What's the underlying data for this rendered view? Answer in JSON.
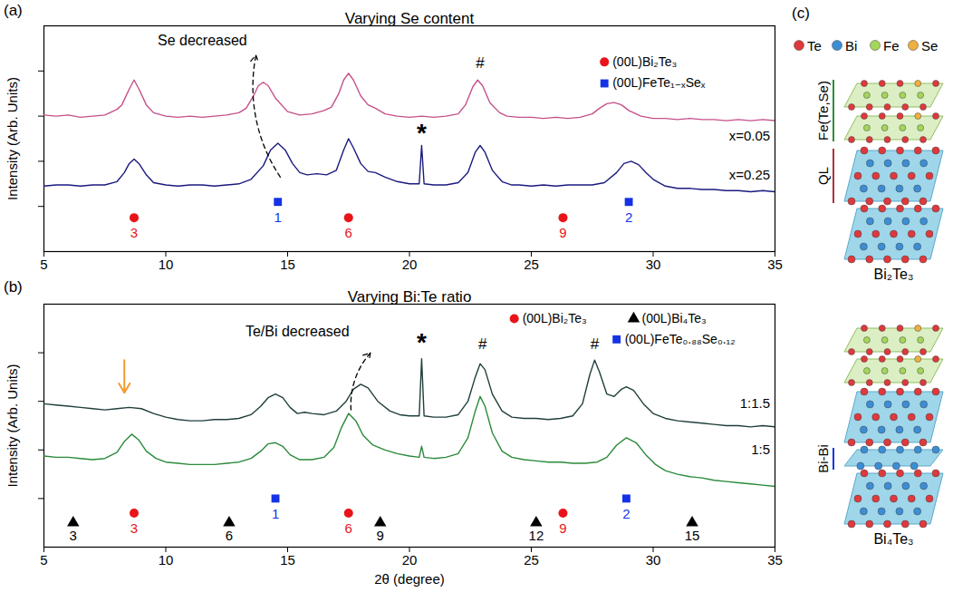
{
  "chart_data": [
    {
      "type": "line",
      "panel_label": "(a)",
      "title": "Varying Se content",
      "ylabel": "Intensity (Arb. Units)",
      "xlim": [
        5,
        35
      ],
      "xticks": [
        5,
        10,
        15,
        20,
        25,
        30,
        35
      ],
      "ylim": [
        0,
        10
      ],
      "yticks": [
        2,
        4,
        6,
        8
      ],
      "tick_labels": "x",
      "grid": false,
      "legend": "top-right",
      "series": [
        {
          "name": "x=0.05",
          "color": "#c5508a",
          "x": [
            5,
            5.5,
            6,
            6.5,
            7,
            7.5,
            8,
            8.2,
            8.5,
            8.7,
            8.9,
            9.2,
            9.5,
            10,
            10.5,
            11,
            11.5,
            12,
            12.5,
            13,
            13.3,
            13.6,
            13.8,
            14.0,
            14.2,
            14.5,
            15,
            15.5,
            16,
            16.5,
            16.8,
            17.1,
            17.3,
            17.5,
            17.7,
            18,
            18.3,
            18.6,
            19,
            19.5,
            20,
            20.5,
            21,
            21.5,
            22,
            22.3,
            22.6,
            22.8,
            23.0,
            23.3,
            23.7,
            24,
            24.5,
            25,
            25.5,
            26,
            26.5,
            27,
            27.5,
            27.8,
            28.1,
            28.4,
            28.7,
            29,
            29.5,
            30,
            30.5,
            31,
            31.5,
            32,
            32.5,
            33,
            33.5,
            34,
            34.5,
            35
          ],
          "values": [
            6.05,
            6.0,
            6.05,
            5.95,
            6.0,
            6.05,
            6.3,
            6.5,
            7.2,
            7.6,
            7.2,
            6.5,
            6.15,
            6.0,
            5.95,
            6.0,
            5.95,
            6.0,
            6.05,
            6.15,
            6.35,
            6.9,
            7.35,
            7.5,
            7.35,
            6.8,
            6.2,
            6.05,
            6.1,
            6.25,
            6.4,
            7.0,
            7.6,
            7.9,
            7.6,
            6.9,
            6.5,
            6.35,
            6.1,
            6.0,
            5.95,
            6.0,
            5.95,
            6.0,
            6.1,
            6.5,
            7.3,
            7.6,
            7.35,
            6.6,
            6.15,
            6.0,
            5.95,
            5.95,
            5.9,
            5.95,
            5.9,
            5.95,
            6.1,
            6.35,
            6.55,
            6.6,
            6.5,
            6.25,
            6.0,
            5.9,
            5.9,
            5.85,
            5.9,
            5.85,
            5.85,
            5.8,
            5.85,
            5.8,
            5.85,
            5.8
          ]
        },
        {
          "name": "x=0.25",
          "color": "#1a1a80",
          "x": [
            5,
            5.5,
            6,
            6.5,
            7,
            7.5,
            8,
            8.3,
            8.5,
            8.7,
            8.9,
            9.2,
            9.5,
            10,
            10.5,
            11,
            11.5,
            12,
            12.5,
            13,
            13.5,
            14,
            14.3,
            14.6,
            14.9,
            15.2,
            15.5,
            15.8,
            16.2,
            16.6,
            17,
            17.3,
            17.5,
            17.7,
            18,
            18.3,
            18.6,
            19,
            19.5,
            20,
            20.4,
            20.5,
            20.6,
            21,
            21.5,
            22,
            22.4,
            22.7,
            22.9,
            23.1,
            23.4,
            23.8,
            24.2,
            24.5,
            25,
            25.5,
            26,
            26.5,
            27,
            27.5,
            28,
            28.5,
            28.8,
            29.1,
            29.4,
            29.7,
            30,
            30.5,
            31,
            31.5,
            32,
            32.5,
            33,
            33.5,
            34,
            34.5,
            35
          ],
          "values": [
            2.9,
            2.95,
            2.95,
            2.9,
            2.95,
            2.95,
            3.1,
            3.5,
            3.9,
            4.1,
            3.9,
            3.4,
            3.05,
            2.95,
            2.9,
            2.95,
            2.95,
            2.9,
            2.95,
            3.0,
            3.2,
            3.8,
            4.5,
            4.8,
            4.5,
            3.9,
            3.5,
            3.4,
            3.45,
            3.4,
            3.6,
            4.5,
            5.0,
            4.6,
            3.9,
            3.55,
            3.5,
            3.3,
            3.1,
            3.0,
            3.0,
            4.7,
            3.0,
            2.95,
            2.95,
            3.05,
            3.5,
            4.4,
            4.7,
            4.4,
            3.6,
            3.1,
            2.95,
            2.95,
            2.9,
            2.95,
            2.9,
            2.95,
            2.95,
            2.95,
            3.05,
            3.5,
            3.9,
            4.0,
            3.85,
            3.5,
            3.2,
            2.9,
            2.8,
            2.8,
            2.75,
            2.75,
            2.7,
            2.7,
            2.65,
            2.7,
            2.65
          ]
        }
      ],
      "reference_peaks": [
        {
          "name": "(00L)Bi₂Te₃",
          "color": "#e8141a",
          "marker": "circle",
          "x": [
            8.7,
            17.5,
            26.3
          ],
          "labels": [
            "3",
            "6",
            "9"
          ]
        },
        {
          "name": "(00L)FeTe₁₋ₓSeₓ",
          "color": "#1432e6",
          "marker": "square",
          "x": [
            14.6,
            29.0
          ],
          "labels": [
            "1",
            "2"
          ]
        }
      ],
      "annotations": [
        {
          "text": "Se decreased",
          "line_style": "dashed"
        },
        {
          "text": "*",
          "x": 20.5
        },
        {
          "text": "#",
          "x": 22.9
        }
      ]
    },
    {
      "type": "line",
      "panel_label": "(b)",
      "title": "Varying Bi:Te ratio",
      "xlabel": "2θ (degree)",
      "ylabel": "Intensity (Arb. Units)",
      "xlim": [
        5,
        35
      ],
      "xticks": [
        5,
        10,
        15,
        20,
        25,
        30,
        35
      ],
      "ylim": [
        0,
        10
      ],
      "yticks": [
        2,
        4,
        6,
        8
      ],
      "tick_labels": "x",
      "grid": false,
      "legend": "top-right",
      "series": [
        {
          "name": "1:1.5",
          "color": "#1f3f3c",
          "x": [
            5,
            5.5,
            6,
            6.5,
            7,
            7.5,
            8,
            8.5,
            9,
            9.5,
            10,
            10.5,
            11,
            11.5,
            12,
            12.5,
            13,
            13.5,
            13.9,
            14.2,
            14.5,
            14.8,
            15.1,
            15.4,
            15.7,
            16,
            16.5,
            17,
            17.4,
            17.7,
            18,
            18.3,
            18.7,
            19.2,
            19.6,
            20,
            20.4,
            20.5,
            20.6,
            21,
            21.5,
            22,
            22.4,
            22.7,
            22.9,
            23.1,
            23.4,
            23.8,
            24.2,
            24.7,
            25.2,
            25.7,
            26.2,
            26.7,
            27.1,
            27.4,
            27.6,
            27.8,
            28.1,
            28.4,
            28.7,
            28.9,
            29.2,
            29.6,
            30,
            30.5,
            31,
            31.5,
            32,
            32.5,
            33,
            33.5,
            34,
            34.5,
            35
          ],
          "values": [
            5.9,
            5.85,
            5.8,
            5.75,
            5.7,
            5.65,
            5.7,
            5.75,
            5.7,
            5.5,
            5.35,
            5.25,
            5.2,
            5.2,
            5.25,
            5.25,
            5.3,
            5.45,
            5.8,
            6.15,
            6.3,
            6.15,
            5.75,
            5.5,
            5.55,
            5.5,
            5.45,
            5.6,
            6.0,
            6.5,
            6.7,
            6.55,
            6.0,
            5.6,
            5.45,
            5.4,
            5.4,
            7.75,
            5.4,
            5.35,
            5.35,
            5.45,
            6.0,
            7.0,
            7.55,
            7.3,
            6.3,
            5.6,
            5.35,
            5.3,
            5.3,
            5.25,
            5.3,
            5.4,
            5.9,
            7.1,
            7.7,
            7.2,
            6.3,
            6.2,
            6.5,
            6.6,
            6.45,
            5.9,
            5.5,
            5.3,
            5.2,
            5.15,
            5.1,
            5.05,
            5.0,
            5.0,
            4.95,
            5.0,
            4.95
          ]
        },
        {
          "name": "1:5",
          "color": "#2a8a3a",
          "x": [
            5,
            5.5,
            6,
            6.5,
            7,
            7.5,
            8,
            8.3,
            8.6,
            8.9,
            9.2,
            9.6,
            10,
            10.5,
            11,
            11.5,
            12,
            12.5,
            13,
            13.5,
            13.9,
            14.2,
            14.5,
            14.8,
            15.1,
            15.5,
            16,
            16.5,
            16.9,
            17.2,
            17.5,
            17.8,
            18.1,
            18.5,
            19,
            19.5,
            20,
            20.4,
            20.5,
            20.6,
            21,
            21.5,
            22,
            22.4,
            22.7,
            22.9,
            23.1,
            23.4,
            23.8,
            24.2,
            24.7,
            25.2,
            25.7,
            26.2,
            26.7,
            27.2,
            27.7,
            28.1,
            28.5,
            28.9,
            29.3,
            29.7,
            30.1,
            30.5,
            31,
            31.5,
            32,
            32.5,
            33,
            33.5,
            34,
            34.5,
            35
          ],
          "values": [
            3.75,
            3.7,
            3.7,
            3.65,
            3.6,
            3.65,
            3.9,
            4.35,
            4.65,
            4.4,
            3.95,
            3.65,
            3.5,
            3.45,
            3.4,
            3.4,
            3.4,
            3.45,
            3.5,
            3.65,
            3.95,
            4.25,
            4.3,
            4.15,
            3.8,
            3.6,
            3.6,
            3.7,
            4.1,
            4.9,
            5.5,
            5.2,
            4.6,
            4.2,
            4.0,
            3.85,
            3.75,
            3.7,
            4.15,
            3.7,
            3.65,
            3.7,
            3.85,
            4.5,
            5.6,
            6.2,
            5.8,
            4.7,
            3.95,
            3.7,
            3.6,
            3.55,
            3.5,
            3.5,
            3.45,
            3.45,
            3.5,
            3.7,
            4.2,
            4.5,
            4.3,
            3.8,
            3.4,
            3.15,
            3.0,
            2.9,
            2.85,
            2.75,
            2.7,
            2.65,
            2.6,
            2.55,
            2.5
          ]
        }
      ],
      "reference_peaks": [
        {
          "name": "(00L)Bi₂Te₃",
          "color": "#e8141a",
          "marker": "circle",
          "x": [
            8.7,
            17.5,
            26.3
          ],
          "labels": [
            "3",
            "6",
            "9"
          ]
        },
        {
          "name": "(00L)Bi₄Te₃",
          "color": "#000000",
          "marker": "triangle",
          "x": [
            6.2,
            12.6,
            18.8,
            25.2,
            31.6
          ],
          "labels": [
            "3",
            "6",
            "9",
            "12",
            "15"
          ]
        },
        {
          "name": "(00L)FeTe₀.₈₈Se₀.₁₂",
          "color": "#1432e6",
          "marker": "square",
          "x": [
            14.5,
            28.9
          ],
          "labels": [
            "1",
            "2"
          ]
        }
      ],
      "annotations": [
        {
          "text": "Te/Bi decreased",
          "line_style": "dashed"
        },
        {
          "text": "*",
          "x": 20.5
        },
        {
          "text": "#",
          "x": 23.0
        },
        {
          "text": "#",
          "x": 27.6
        }
      ]
    }
  ],
  "diagram": {
    "panel_label": "(c)",
    "elements": [
      {
        "label": "Te",
        "color": "#e0383c"
      },
      {
        "label": "Bi",
        "color": "#3b8ed6"
      },
      {
        "label": "Fe",
        "color": "#a5d65a"
      },
      {
        "label": "Se",
        "color": "#f0b040"
      }
    ],
    "structures": [
      {
        "name": "Bi₂Te₃",
        "layer_labels": [
          {
            "text": "Fe(Te,Se)",
            "color": "#2e8b3e"
          },
          {
            "text": "QL",
            "color": "#b0303a"
          }
        ]
      },
      {
        "name": "Bi₄Te₃",
        "layer_labels": [
          {
            "text": "Bi-Bi",
            "color": "#1432e6"
          }
        ]
      }
    ]
  }
}
